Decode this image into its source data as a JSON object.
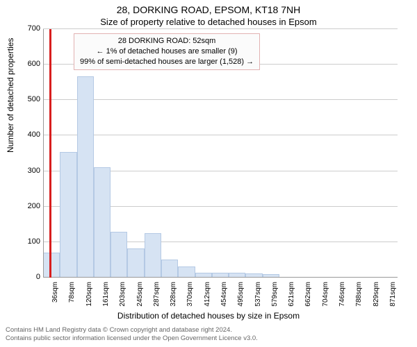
{
  "titles": {
    "main": "28, DORKING ROAD, EPSOM, KT18 7NH",
    "sub": "Size of property relative to detached houses in Epsom"
  },
  "legend": {
    "line1": "28 DORKING ROAD: 52sqm",
    "line2": "← 1% of detached houses are smaller (9)",
    "line3": "99% of semi-detached houses are larger (1,528) →",
    "border_color": "#e2b2b2",
    "background": "#fbfbfb",
    "fontsize": 11
  },
  "chart": {
    "type": "histogram",
    "values": [
      70,
      354,
      568,
      310,
      130,
      82,
      125,
      50,
      32,
      14,
      13,
      13,
      11,
      10,
      0,
      0,
      0,
      0,
      0,
      0,
      0
    ],
    "bar_fill": "#d6e3f3",
    "bar_stroke": "#b4c9e4",
    "ylim": [
      0,
      700
    ],
    "ytick_step": 100,
    "yticks": [
      0,
      100,
      200,
      300,
      400,
      500,
      600,
      700
    ],
    "xticks": [
      "36sqm",
      "78sqm",
      "120sqm",
      "161sqm",
      "203sqm",
      "245sqm",
      "287sqm",
      "328sqm",
      "370sqm",
      "412sqm",
      "454sqm",
      "495sqm",
      "537sqm",
      "579sqm",
      "621sqm",
      "662sqm",
      "704sqm",
      "746sqm",
      "788sqm",
      "829sqm",
      "871sqm"
    ],
    "grid_color": "#cccccc",
    "axis_color": "#999999",
    "background": "#ffffff",
    "marker": {
      "position_index": 0.38,
      "color": "#d81e1e"
    },
    "ylabel": "Number of detached properties",
    "xlabel": "Distribution of detached houses by size in Epsom",
    "label_fontsize": 12,
    "tick_fontsize": 11,
    "xtick_fontsize": 10
  },
  "footer": {
    "line1": "Contains HM Land Registry data © Crown copyright and database right 2024.",
    "line2": "Contains public sector information licensed under the Open Government Licence v3.0.",
    "color": "#666666",
    "fontsize": 9.5
  }
}
